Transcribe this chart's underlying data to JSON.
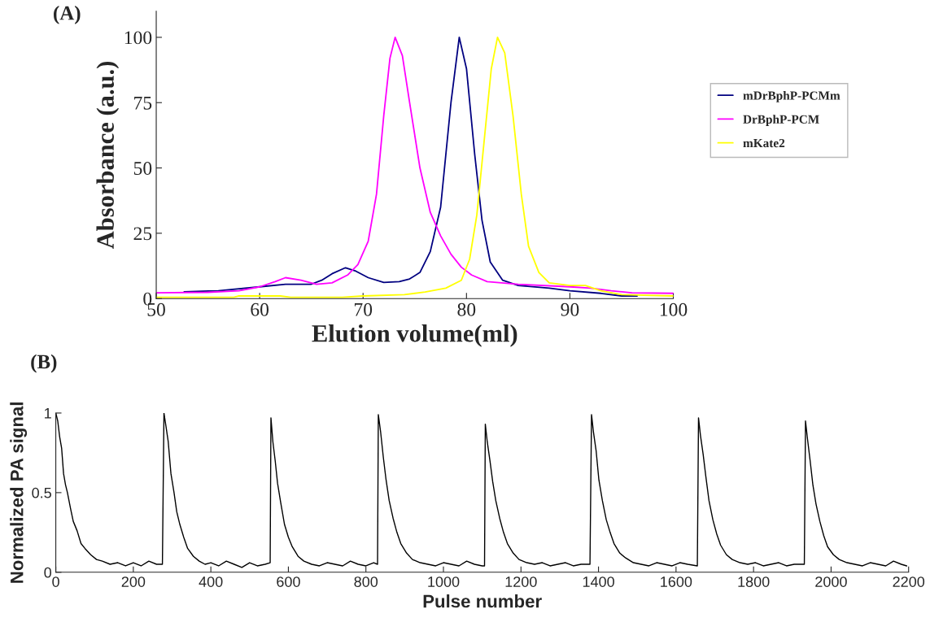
{
  "chart_data": [
    {
      "type": "line",
      "title": "(A)",
      "xlabel": "Elution volume(ml)",
      "ylabel": "Absorbance (a.u.)",
      "xlim": [
        50,
        100
      ],
      "ylim": [
        0,
        110
      ],
      "xticks": [
        50,
        60,
        70,
        80,
        90,
        100
      ],
      "yticks": [
        0,
        25,
        50,
        75,
        100
      ],
      "legend": "right",
      "grid": false,
      "series": [
        {
          "name": "mDrBphP-PCMm",
          "color": "#000080",
          "x": [
            52.7,
            56,
            60,
            62.5,
            65,
            66,
            67,
            68.3,
            69.3,
            70.5,
            72,
            73.5,
            74.5,
            75.5,
            76.5,
            77.5,
            78.5,
            79.3,
            80,
            80.8,
            81.5,
            82.3,
            83.5,
            85,
            88,
            90,
            93,
            95,
            96.5
          ],
          "values": [
            2.6,
            3,
            4.5,
            5.5,
            5.5,
            7,
            9.5,
            11.8,
            10.5,
            8,
            6.2,
            6.5,
            7.5,
            10,
            18,
            35,
            75,
            100,
            88,
            55,
            30,
            14,
            7,
            5,
            4,
            3,
            2,
            1,
            1
          ]
        },
        {
          "name": "DrBphP-PCM",
          "color": "#ff00ff",
          "x": [
            50,
            55,
            58,
            60,
            61.5,
            62.5,
            64,
            65.5,
            67,
            68.5,
            69.5,
            70.5,
            71.3,
            72,
            72.6,
            73.1,
            73.8,
            74.5,
            75.5,
            76.5,
            77.5,
            78.5,
            79.5,
            80.5,
            82,
            85,
            90,
            92,
            94,
            96,
            100
          ],
          "values": [
            2.2,
            2.4,
            3,
            4.5,
            6.5,
            8,
            7,
            5.5,
            6,
            9,
            13,
            22,
            40,
            70,
            92,
            100,
            93,
            75,
            50,
            33,
            24,
            17,
            12,
            9,
            6.5,
            5.5,
            4.5,
            4,
            3,
            2.2,
            2
          ]
        },
        {
          "name": "mKate2",
          "color": "#ffff00",
          "x": [
            50,
            57.5,
            58,
            62,
            63,
            68,
            70,
            74,
            76,
            78,
            79.5,
            80.3,
            81,
            81.7,
            82.4,
            83,
            83.7,
            84.5,
            85.3,
            86,
            87,
            88,
            90,
            91.5,
            93,
            95,
            100
          ],
          "values": [
            0.5,
            0.5,
            1,
            1,
            0.5,
            0.5,
            1,
            1.5,
            2.5,
            4,
            7,
            15,
            32,
            60,
            88,
            100,
            94,
            70,
            40,
            20,
            10,
            6,
            5,
            5,
            3,
            1.5,
            1
          ]
        }
      ]
    },
    {
      "type": "line",
      "title": "(B)",
      "xlabel": "Pulse number",
      "ylabel": "Normalized PA signal",
      "xlim": [
        0,
        2200
      ],
      "ylim": [
        0,
        1
      ],
      "xticks": [
        0,
        200,
        400,
        600,
        800,
        1000,
        1200,
        1400,
        1600,
        1800,
        2000,
        2200
      ],
      "yticks": [
        0,
        0.5,
        1
      ],
      "grid": false,
      "series": [
        {
          "color": "#000000",
          "x": [
            0,
            5,
            10,
            15,
            20,
            25,
            30,
            38,
            45,
            55,
            65,
            75,
            90,
            105,
            120,
            140,
            160,
            180,
            200,
            220,
            240,
            260,
            275,
            279,
            284,
            290,
            297,
            305,
            312,
            320,
            330,
            340,
            355,
            370,
            385,
            400,
            420,
            440,
            460,
            480,
            500,
            520,
            540,
            553,
            555,
            560,
            566,
            572,
            580,
            590,
            600,
            610,
            625,
            640,
            660,
            680,
            700,
            720,
            740,
            760,
            780,
            800,
            820,
            830,
            832,
            838,
            845,
            852,
            860,
            870,
            880,
            890,
            905,
            920,
            940,
            960,
            980,
            1000,
            1020,
            1040,
            1060,
            1080,
            1100,
            1106,
            1108,
            1113,
            1120,
            1127,
            1135,
            1145,
            1155,
            1165,
            1180,
            1195,
            1215,
            1235,
            1255,
            1275,
            1295,
            1315,
            1335,
            1355,
            1378,
            1382,
            1387,
            1394,
            1401,
            1410,
            1420,
            1430,
            1440,
            1455,
            1470,
            1490,
            1510,
            1530,
            1550,
            1570,
            1590,
            1610,
            1630,
            1655,
            1658,
            1663,
            1670,
            1677,
            1685,
            1695,
            1705,
            1715,
            1730,
            1745,
            1765,
            1785,
            1805,
            1825,
            1845,
            1865,
            1885,
            1905,
            1931,
            1934,
            1939,
            1946,
            1953,
            1961,
            1971,
            1981,
            1991,
            2006,
            2021,
            2041,
            2061,
            2081,
            2101,
            2121,
            2141,
            2161,
            2181,
            2195
          ],
          "values": [
            1.0,
            0.95,
            0.85,
            0.78,
            0.62,
            0.55,
            0.5,
            0.4,
            0.32,
            0.26,
            0.18,
            0.15,
            0.11,
            0.08,
            0.07,
            0.05,
            0.06,
            0.04,
            0.06,
            0.04,
            0.07,
            0.05,
            0.05,
            1.0,
            0.92,
            0.82,
            0.62,
            0.5,
            0.38,
            0.3,
            0.22,
            0.15,
            0.1,
            0.07,
            0.05,
            0.06,
            0.04,
            0.07,
            0.05,
            0.03,
            0.06,
            0.04,
            0.05,
            0.06,
            0.97,
            0.82,
            0.7,
            0.56,
            0.44,
            0.3,
            0.22,
            0.16,
            0.1,
            0.07,
            0.05,
            0.04,
            0.06,
            0.05,
            0.04,
            0.07,
            0.05,
            0.04,
            0.06,
            0.05,
            0.99,
            0.88,
            0.72,
            0.58,
            0.45,
            0.34,
            0.25,
            0.18,
            0.12,
            0.08,
            0.06,
            0.05,
            0.04,
            0.06,
            0.05,
            0.04,
            0.07,
            0.05,
            0.04,
            0.04,
            0.93,
            0.82,
            0.7,
            0.57,
            0.45,
            0.34,
            0.25,
            0.18,
            0.12,
            0.08,
            0.06,
            0.05,
            0.06,
            0.04,
            0.05,
            0.06,
            0.04,
            0.05,
            0.05,
            0.99,
            0.88,
            0.76,
            0.58,
            0.45,
            0.33,
            0.25,
            0.18,
            0.12,
            0.09,
            0.06,
            0.05,
            0.04,
            0.06,
            0.05,
            0.04,
            0.06,
            0.05,
            0.04,
            0.97,
            0.86,
            0.74,
            0.6,
            0.45,
            0.33,
            0.24,
            0.17,
            0.11,
            0.08,
            0.06,
            0.05,
            0.06,
            0.04,
            0.05,
            0.06,
            0.04,
            0.05,
            0.05,
            0.95,
            0.84,
            0.7,
            0.55,
            0.43,
            0.32,
            0.23,
            0.16,
            0.11,
            0.08,
            0.06,
            0.05,
            0.04,
            0.06,
            0.05,
            0.04,
            0.07,
            0.05,
            0.04
          ]
        }
      ]
    }
  ]
}
